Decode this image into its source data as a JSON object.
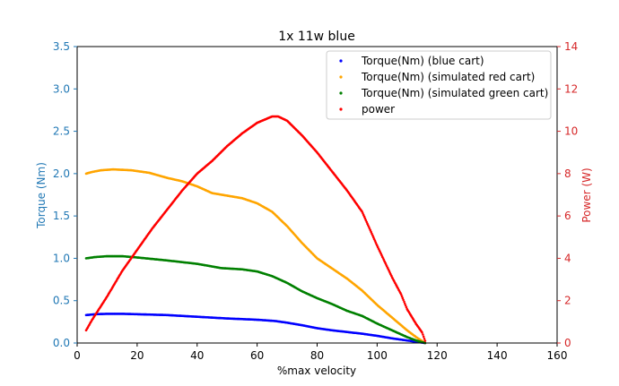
{
  "chart_data": {
    "type": "scatter",
    "title": "1x 11w blue",
    "xlabel": "%max velocity",
    "ylabel_left": "Torque (Nm)",
    "ylabel_right": "Power (W)",
    "xlim": [
      0,
      160
    ],
    "ylim_left": [
      0,
      3.5
    ],
    "ylim_right": [
      0,
      14
    ],
    "x_ticks": [
      "0",
      "20",
      "40",
      "60",
      "80",
      "100",
      "120",
      "140",
      "160"
    ],
    "y_left_ticks": [
      "0.0",
      "0.5",
      "1.0",
      "1.5",
      "2.0",
      "2.5",
      "3.0",
      "3.5"
    ],
    "y_right_ticks": [
      "0",
      "2",
      "4",
      "6",
      "8",
      "10",
      "12",
      "14"
    ],
    "grid": false,
    "legend_position": "top-right",
    "colors": {
      "left_axis": "#1f77b4",
      "right_axis": "#d62728"
    },
    "series": [
      {
        "name": "Torque(Nm) (blue cart)",
        "axis": "left",
        "color": "#0000ff",
        "points": [
          [
            3,
            0.33
          ],
          [
            6,
            0.34
          ],
          [
            10,
            0.345
          ],
          [
            15,
            0.345
          ],
          [
            20,
            0.34
          ],
          [
            30,
            0.33
          ],
          [
            40,
            0.31
          ],
          [
            50,
            0.29
          ],
          [
            60,
            0.275
          ],
          [
            66,
            0.26
          ],
          [
            70,
            0.24
          ],
          [
            75,
            0.21
          ],
          [
            80,
            0.175
          ],
          [
            85,
            0.15
          ],
          [
            90,
            0.13
          ],
          [
            95,
            0.11
          ],
          [
            100,
            0.085
          ],
          [
            105,
            0.055
          ],
          [
            110,
            0.03
          ],
          [
            113,
            0.015
          ],
          [
            116,
            0.0
          ]
        ]
      },
      {
        "name": "Torque(Nm) (simulated red cart)",
        "axis": "left",
        "color": "#ffa500",
        "points": [
          [
            3,
            2.0
          ],
          [
            5,
            2.02
          ],
          [
            8,
            2.04
          ],
          [
            12,
            2.05
          ],
          [
            18,
            2.04
          ],
          [
            24,
            2.01
          ],
          [
            30,
            1.95
          ],
          [
            35,
            1.91
          ],
          [
            40,
            1.85
          ],
          [
            45,
            1.77
          ],
          [
            50,
            1.74
          ],
          [
            55,
            1.71
          ],
          [
            60,
            1.65
          ],
          [
            65,
            1.55
          ],
          [
            70,
            1.38
          ],
          [
            75,
            1.18
          ],
          [
            80,
            1.0
          ],
          [
            85,
            0.88
          ],
          [
            90,
            0.76
          ],
          [
            95,
            0.62
          ],
          [
            100,
            0.45
          ],
          [
            105,
            0.3
          ],
          [
            110,
            0.15
          ],
          [
            113,
            0.07
          ],
          [
            116,
            0.0
          ]
        ]
      },
      {
        "name": "Torque(Nm) (simulated green cart)",
        "axis": "left",
        "color": "#008000",
        "points": [
          [
            3,
            1.0
          ],
          [
            6,
            1.015
          ],
          [
            10,
            1.025
          ],
          [
            15,
            1.025
          ],
          [
            20,
            1.01
          ],
          [
            30,
            0.975
          ],
          [
            40,
            0.935
          ],
          [
            48,
            0.885
          ],
          [
            55,
            0.87
          ],
          [
            60,
            0.845
          ],
          [
            65,
            0.79
          ],
          [
            70,
            0.71
          ],
          [
            75,
            0.61
          ],
          [
            80,
            0.53
          ],
          [
            85,
            0.46
          ],
          [
            90,
            0.38
          ],
          [
            95,
            0.32
          ],
          [
            100,
            0.23
          ],
          [
            105,
            0.15
          ],
          [
            110,
            0.07
          ],
          [
            113,
            0.03
          ],
          [
            116,
            0.0
          ]
        ]
      },
      {
        "name": "power",
        "axis": "right",
        "color": "#ff0000",
        "points": [
          [
            3,
            0.6
          ],
          [
            5,
            1.1
          ],
          [
            10,
            2.2
          ],
          [
            15,
            3.4
          ],
          [
            20,
            4.4
          ],
          [
            25,
            5.4
          ],
          [
            30,
            6.3
          ],
          [
            35,
            7.2
          ],
          [
            40,
            8.0
          ],
          [
            45,
            8.6
          ],
          [
            50,
            9.3
          ],
          [
            55,
            9.9
          ],
          [
            60,
            10.4
          ],
          [
            65,
            10.7
          ],
          [
            67,
            10.7
          ],
          [
            70,
            10.5
          ],
          [
            75,
            9.8
          ],
          [
            80,
            9.0
          ],
          [
            85,
            8.1
          ],
          [
            90,
            7.2
          ],
          [
            95,
            6.2
          ],
          [
            100,
            4.6
          ],
          [
            105,
            3.1
          ],
          [
            108,
            2.3
          ],
          [
            110,
            1.6
          ],
          [
            113,
            0.9
          ],
          [
            115,
            0.5
          ],
          [
            116,
            0.1
          ]
        ]
      }
    ]
  }
}
